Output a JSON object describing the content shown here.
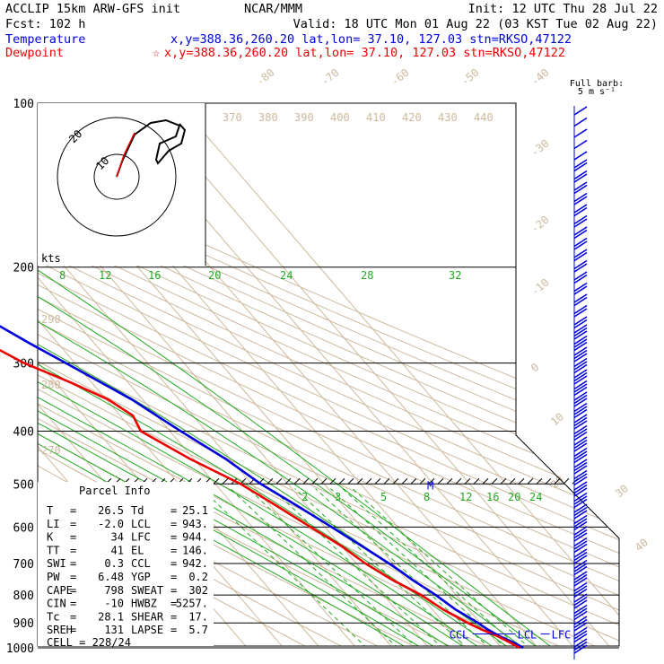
{
  "header": {
    "model": "ACCLIP 15km ARW-GFS init",
    "org": "NCAR/MMM",
    "init": "Init: 12 UTC Thu 28 Jul 22",
    "fcst": "Fcst:  102 h",
    "valid": "Valid: 18 UTC Mon 01 Aug 22 (03 KST Tue 02 Aug 22)",
    "temp_label": "Temperature",
    "temp_loc": "x,y=388.36,260.20   lat,lon= 37.10, 127.03  stn=RKSO,47122",
    "dew_label": "Dewpoint",
    "dew_loc": "x,y=388.36,260.20   lat,lon= 37.10, 127.03  stn=RKSO,47122",
    "barb_label1": "Full barb:",
    "barb_label2": "5 m s⁻¹"
  },
  "hodograph": {
    "units": "kts",
    "ring_labels": [
      "10",
      "20"
    ]
  },
  "parcel": {
    "title": "Parcel Info",
    "rows": [
      [
        "T",
        "26.5",
        "Td",
        "25.1"
      ],
      [
        "LI",
        "-2.0",
        "LCL",
        "943."
      ],
      [
        "K",
        "34",
        "LFC",
        "944."
      ],
      [
        "TT",
        "41",
        "EL",
        "146."
      ],
      [
        "SWI",
        "0.3",
        "CCL",
        "942."
      ],
      [
        "PW",
        "6.48",
        "YGP",
        "0.2"
      ],
      [
        "CAPE",
        "798",
        "SWEAT",
        "302"
      ],
      [
        "CIN",
        "-10",
        "HWBZ",
        "5257."
      ],
      [
        "Tc",
        "28.1",
        "SHEAR",
        "17."
      ],
      [
        "SREH",
        "131",
        "LAPSE",
        "5.7"
      ]
    ],
    "cell": "CELL = 228/24"
  },
  "chart_data": {
    "type": "line",
    "title": "",
    "pressure_ticks": [
      100,
      200,
      300,
      400,
      500,
      600,
      700,
      800,
      900,
      1000
    ],
    "isotherm_labels": [
      "-80",
      "-70",
      "-60",
      "-50",
      "-40",
      "-30",
      "-20",
      "-10",
      "0",
      "10",
      "20",
      "30",
      "40"
    ],
    "theta_labels": [
      "370",
      "380",
      "390",
      "400",
      "410",
      "420",
      "430",
      "440"
    ],
    "theta_left_labels": [
      "290",
      "280",
      "270"
    ],
    "wbulb_labels": [
      "8",
      "12",
      "16",
      "20",
      "24",
      "28",
      "32"
    ],
    "mixing_labels": [
      "2",
      "3",
      "5",
      "8",
      "12",
      "16",
      "20",
      "24"
    ],
    "level_markers": [
      "EL",
      "M",
      "CCL",
      "LCL",
      "LFC"
    ],
    "series": [
      {
        "name": "Temperature",
        "color": "#0000dd",
        "points": [
          [
            1000,
            25.9
          ],
          [
            975,
            24.3
          ],
          [
            950,
            22.1
          ],
          [
            925,
            20.5
          ],
          [
            900,
            19.4
          ],
          [
            875,
            18.0
          ],
          [
            850,
            16.4
          ],
          [
            825,
            15.4
          ],
          [
            800,
            14.4
          ],
          [
            775,
            13.0
          ],
          [
            750,
            11.5
          ],
          [
            725,
            10.4
          ],
          [
            700,
            9.0
          ],
          [
            650,
            5.6
          ],
          [
            600,
            1.8
          ],
          [
            550,
            -2.5
          ],
          [
            500,
            -7.5
          ],
          [
            450,
            -11.2
          ],
          [
            400,
            -17.0
          ],
          [
            350,
            -23.0
          ],
          [
            300,
            -32.5
          ],
          [
            275,
            -38.0
          ],
          [
            250,
            -43.5
          ],
          [
            225,
            -50.0
          ],
          [
            200,
            -56.5
          ],
          [
            175,
            -63.5
          ],
          [
            150,
            -71.5
          ],
          [
            125,
            -78.5
          ],
          [
            100,
            -79.5
          ]
        ]
      },
      {
        "name": "Dewpoint",
        "color": "#ee0000",
        "points": [
          [
            1000,
            25.0
          ],
          [
            975,
            23.4
          ],
          [
            950,
            21.5
          ],
          [
            925,
            18.8
          ],
          [
            900,
            16.6
          ],
          [
            850,
            13.0
          ],
          [
            800,
            10.4
          ],
          [
            750,
            6.0
          ],
          [
            700,
            2.5
          ],
          [
            650,
            0.0
          ],
          [
            600,
            -4.0
          ],
          [
            550,
            -8.2
          ],
          [
            500,
            -13.0
          ],
          [
            450,
            -21.0
          ],
          [
            400,
            -28.0
          ],
          [
            375,
            -26.5
          ],
          [
            350,
            -29.5
          ],
          [
            325,
            -36.0
          ],
          [
            300,
            -44.0
          ],
          [
            270,
            -51.0
          ],
          [
            250,
            -62.0
          ],
          [
            220,
            -76.0
          ],
          [
            210,
            -80.0
          ],
          [
            200,
            -76.0
          ],
          [
            190,
            -72.5
          ],
          [
            175,
            -71.0
          ],
          [
            160,
            -75.0
          ],
          [
            140,
            -83.0
          ],
          [
            120,
            -86.0
          ],
          [
            100,
            -87.5
          ]
        ]
      }
    ]
  }
}
